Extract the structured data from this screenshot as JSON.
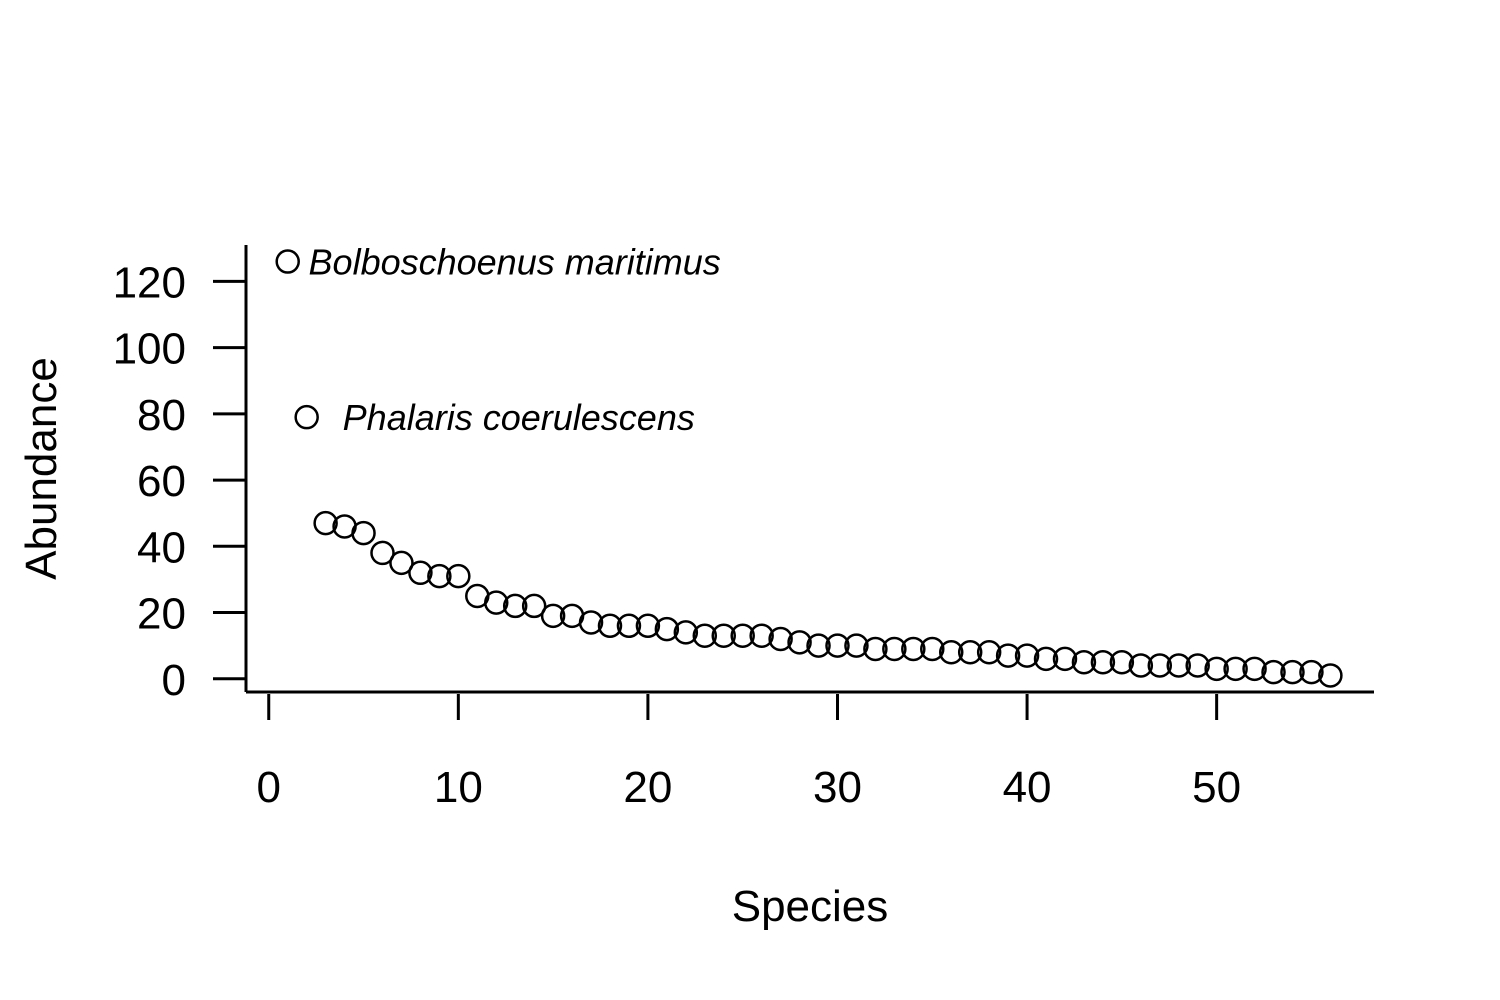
{
  "chart_data": {
    "type": "scatter",
    "title": "",
    "xlabel": "Species",
    "ylabel": "Abundance",
    "xlim": [
      -1.2,
      58.3
    ],
    "ylim": [
      -4,
      131
    ],
    "xticks": [
      0,
      10,
      20,
      30,
      40,
      50
    ],
    "yticks": [
      0,
      20,
      40,
      60,
      80,
      100,
      120
    ],
    "grid": false,
    "legend": "none",
    "marker": "open-circle",
    "color": "#000000",
    "x": [
      1,
      2,
      3,
      4,
      5,
      6,
      7,
      8,
      9,
      10,
      11,
      12,
      13,
      14,
      15,
      16,
      17,
      18,
      19,
      20,
      21,
      22,
      23,
      24,
      25,
      26,
      27,
      28,
      29,
      30,
      31,
      32,
      33,
      34,
      35,
      36,
      37,
      38,
      39,
      40,
      41,
      42,
      43,
      44,
      45,
      46,
      47,
      48,
      49,
      50,
      51,
      52,
      53,
      54,
      55,
      56
    ],
    "y": [
      126,
      79,
      47,
      46,
      44,
      38,
      35,
      32,
      31,
      31,
      25,
      23,
      22,
      22,
      19,
      19,
      17,
      16,
      16,
      16,
      15,
      14,
      13,
      13,
      13,
      13,
      12,
      11,
      10,
      10,
      10,
      9,
      9,
      9,
      9,
      8,
      8,
      8,
      7,
      7,
      6,
      6,
      5,
      5,
      5,
      4,
      4,
      4,
      4,
      3,
      3,
      3,
      2,
      2,
      2,
      1
    ],
    "annotations": [
      {
        "text": "Bolboschoenus maritimus",
        "x": 2.1,
        "y": 126
      },
      {
        "text": "Phalaris coerulescens",
        "x": 3.9,
        "y": 79
      }
    ]
  }
}
